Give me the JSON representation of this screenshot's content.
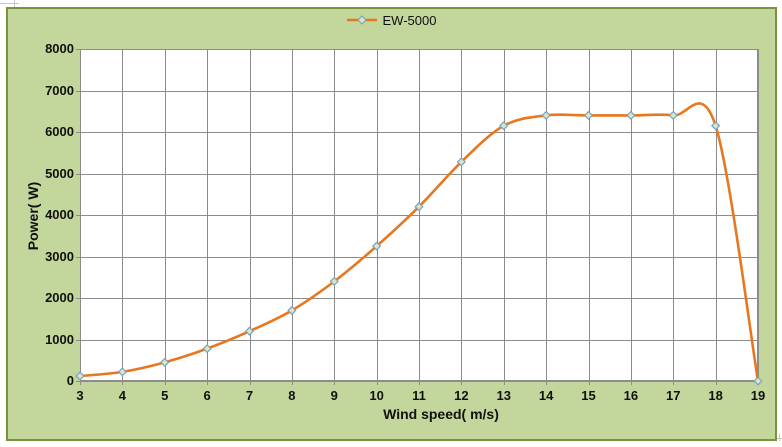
{
  "legend": {
    "label": "EW-5000"
  },
  "colors": {
    "canvas_background": "#C3D69B",
    "canvas_border": "#77933C",
    "plot_background": "#FFFFFF",
    "gridline": "#8C8C8C",
    "axis_line": "#8C8C8C",
    "series_line": "#E8771E",
    "marker_fill": "#D9E5C3",
    "marker_stroke": "#7CA0C2",
    "text": "#111111"
  },
  "chart_data": {
    "type": "line",
    "smooth": true,
    "legend_position": "top",
    "grid": true,
    "xlabel": "Wind speed( m/s)",
    "ylabel": "Power( W)",
    "xlim": [
      3,
      19
    ],
    "ylim": [
      0,
      8000
    ],
    "x_ticks": [
      3,
      4,
      5,
      6,
      7,
      8,
      9,
      10,
      11,
      12,
      13,
      14,
      15,
      16,
      17,
      18,
      19
    ],
    "y_ticks": [
      0,
      1000,
      2000,
      3000,
      4000,
      5000,
      6000,
      7000,
      8000
    ],
    "series": [
      {
        "name": "EW-5000",
        "x": [
          3,
          4,
          5,
          6,
          7,
          8,
          9,
          10,
          11,
          12,
          13,
          14,
          15,
          16,
          17,
          18,
          19
        ],
        "values": [
          120,
          220,
          450,
          780,
          1200,
          1700,
          2400,
          3250,
          4200,
          5280,
          6150,
          6400,
          6400,
          6400,
          6400,
          6150,
          0
        ]
      }
    ]
  }
}
